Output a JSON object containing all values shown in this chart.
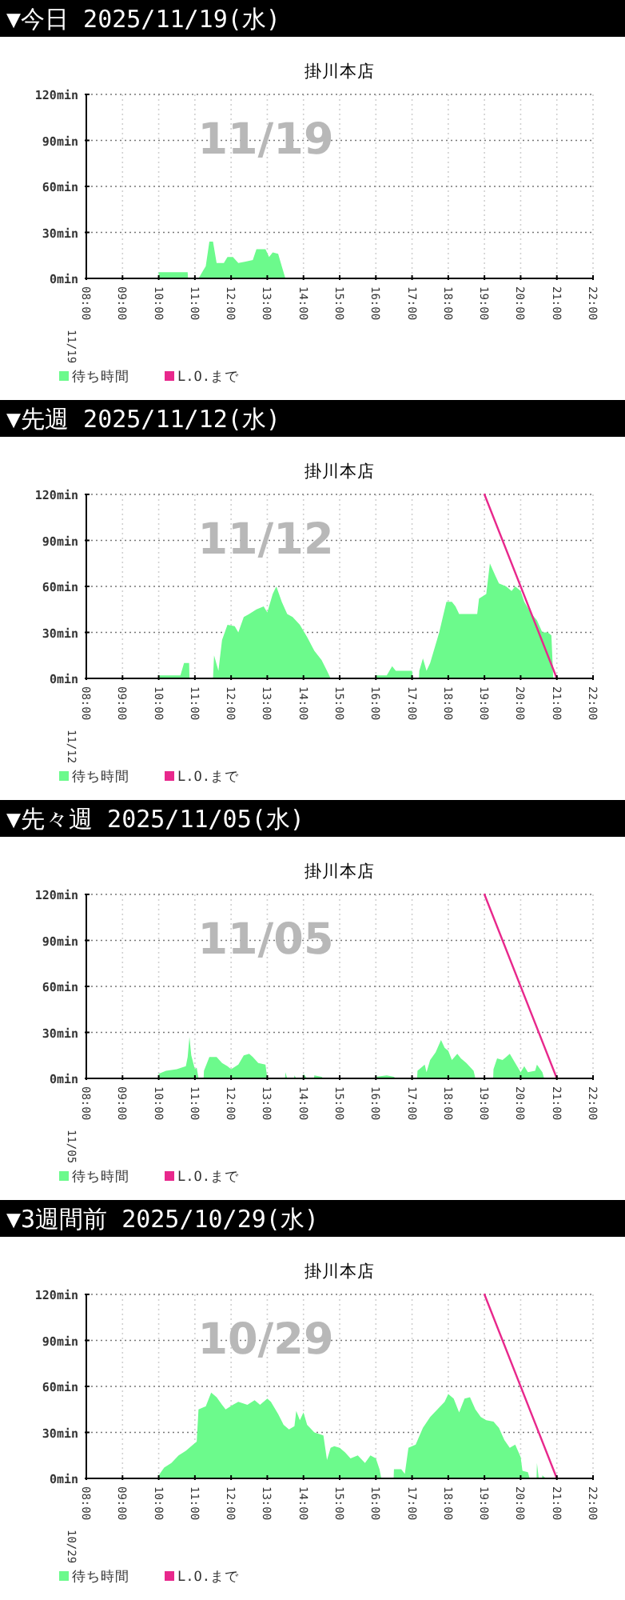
{
  "chart_data": [
    {
      "type": "area",
      "title": "▼今日 2025/11/19(水)",
      "subtitle": "掛川本店",
      "annotations": [
        "11/19",
        "11/19"
      ],
      "xlim": [
        8,
        22
      ],
      "ylim": [
        0,
        120
      ],
      "grid": true,
      "legend": "bottom left",
      "xticks": [
        {
          "value": 8,
          "label": "08:00"
        },
        {
          "value": 9,
          "label": "09:00"
        },
        {
          "value": 10,
          "label": "10:00"
        },
        {
          "value": 11,
          "label": "11:00"
        },
        {
          "value": 12,
          "label": "12:00"
        },
        {
          "value": 13,
          "label": "13:00"
        },
        {
          "value": 14,
          "label": "14:00"
        },
        {
          "value": 15,
          "label": "15:00"
        },
        {
          "value": 16,
          "label": "16:00"
        },
        {
          "value": 17,
          "label": "17:00"
        },
        {
          "value": 18,
          "label": "18:00"
        },
        {
          "value": 19,
          "label": "19:00"
        },
        {
          "value": 20,
          "label": "20:00"
        },
        {
          "value": 21,
          "label": "21:00"
        },
        {
          "value": 22,
          "label": "22:00"
        }
      ],
      "yticks": [
        {
          "value": 0,
          "label": "0min"
        },
        {
          "value": 30,
          "label": "30min"
        },
        {
          "value": 60,
          "label": "60min"
        },
        {
          "value": 90,
          "label": "90min"
        },
        {
          "value": 120,
          "label": "120min"
        }
      ],
      "series": [
        {
          "name": "待ち時間",
          "color": "#6cfa8c",
          "x": [
            10,
            10.8,
            10.81,
            11.1,
            11.15,
            11.3,
            11.4,
            11.5,
            11.6,
            11.8,
            11.9,
            12.05,
            12.2,
            12.4,
            12.6,
            12.7,
            12.95,
            13.05,
            13.15,
            13.3,
            13.4,
            13.5
          ],
          "values": [
            4,
            4,
            0,
            0,
            2,
            8,
            24,
            24,
            10,
            10,
            14,
            14,
            10,
            11,
            12,
            19,
            19,
            14,
            17,
            16,
            8,
            0
          ]
        },
        {
          "name": "L.O.まで",
          "type": "line",
          "color": "#e8288c"
        }
      ]
    },
    {
      "type": "area",
      "title": "▼先週 2025/11/12(水)",
      "subtitle": "掛川本店",
      "annotations": [
        "11/12",
        "11/12"
      ],
      "xlim": [
        8,
        22
      ],
      "ylim": [
        0,
        120
      ],
      "grid": true,
      "legend": "bottom left",
      "xticks": [
        {
          "value": 8,
          "label": "08:00"
        },
        {
          "value": 9,
          "label": "09:00"
        },
        {
          "value": 10,
          "label": "10:00"
        },
        {
          "value": 11,
          "label": "11:00"
        },
        {
          "value": 12,
          "label": "12:00"
        },
        {
          "value": 13,
          "label": "13:00"
        },
        {
          "value": 14,
          "label": "14:00"
        },
        {
          "value": 15,
          "label": "15:00"
        },
        {
          "value": 16,
          "label": "16:00"
        },
        {
          "value": 17,
          "label": "17:00"
        },
        {
          "value": 18,
          "label": "18:00"
        },
        {
          "value": 19,
          "label": "19:00"
        },
        {
          "value": 20,
          "label": "20:00"
        },
        {
          "value": 21,
          "label": "21:00"
        },
        {
          "value": 22,
          "label": "22:00"
        }
      ],
      "yticks": [
        {
          "value": 0,
          "label": "0min"
        },
        {
          "value": 30,
          "label": "30min"
        },
        {
          "value": 60,
          "label": "60min"
        },
        {
          "value": 90,
          "label": "90min"
        },
        {
          "value": 120,
          "label": "120min"
        }
      ],
      "series": [
        {
          "name": "待ち時間",
          "color": "#6cfa8c",
          "x": [
            10,
            10.6,
            10.7,
            10.84,
            10.85,
            11.5,
            11.53,
            11.65,
            11.75,
            11.9,
            12.1,
            12.2,
            12.35,
            12.5,
            12.7,
            12.9,
            13.0,
            13.15,
            13.25,
            13.4,
            13.55,
            13.7,
            13.9,
            14.1,
            14.3,
            14.5,
            14.65,
            14.75,
            15.99,
            16,
            16.3,
            16.45,
            16.55,
            17,
            17.02,
            17.19,
            17.2,
            17.3,
            17.4,
            17.5,
            17.75,
            17.95,
            18.1,
            18.2,
            18.3,
            18.8,
            18.85,
            19.05,
            19.15,
            19.3,
            19.4,
            19.6,
            19.75,
            19.85,
            20,
            20.1,
            20.3,
            20.45,
            20.6,
            20.75,
            20.85,
            20.9
          ],
          "values": [
            2,
            2,
            10,
            10,
            0,
            0,
            15,
            5,
            25,
            35,
            34,
            30,
            40,
            42,
            45,
            47,
            43,
            55,
            60,
            50,
            42,
            40,
            35,
            27,
            18,
            12,
            5,
            0,
            0,
            2,
            2,
            8,
            5,
            5,
            0,
            0,
            5,
            13,
            5,
            10,
            30,
            50,
            50,
            47,
            42,
            42,
            52,
            55,
            75,
            67,
            62,
            60,
            57,
            60,
            57,
            50,
            42,
            38,
            30,
            30,
            28,
            0
          ]
        },
        {
          "name": "L.O.まで",
          "type": "line",
          "color": "#e8288c",
          "x": [
            19,
            21
          ],
          "values": [
            120,
            0
          ]
        }
      ]
    },
    {
      "type": "area",
      "title": "▼先々週 2025/11/05(水)",
      "subtitle": "掛川本店",
      "annotations": [
        "11/05",
        "11/05"
      ],
      "xlim": [
        8,
        22
      ],
      "ylim": [
        0,
        120
      ],
      "grid": true,
      "legend": "bottom left",
      "xticks": [
        {
          "value": 8,
          "label": "08:00"
        },
        {
          "value": 9,
          "label": "09:00"
        },
        {
          "value": 10,
          "label": "10:00"
        },
        {
          "value": 11,
          "label": "11:00"
        },
        {
          "value": 12,
          "label": "12:00"
        },
        {
          "value": 13,
          "label": "13:00"
        },
        {
          "value": 14,
          "label": "14:00"
        },
        {
          "value": 15,
          "label": "15:00"
        },
        {
          "value": 16,
          "label": "16:00"
        },
        {
          "value": 17,
          "label": "17:00"
        },
        {
          "value": 18,
          "label": "18:00"
        },
        {
          "value": 19,
          "label": "19:00"
        },
        {
          "value": 20,
          "label": "20:00"
        },
        {
          "value": 21,
          "label": "21:00"
        },
        {
          "value": 22,
          "label": "22:00"
        }
      ],
      "yticks": [
        {
          "value": 0,
          "label": "0min"
        },
        {
          "value": 30,
          "label": "30min"
        },
        {
          "value": 60,
          "label": "60min"
        },
        {
          "value": 90,
          "label": "90min"
        },
        {
          "value": 120,
          "label": "120min"
        }
      ],
      "series": [
        {
          "name": "待ち時間",
          "color": "#6cfa8c",
          "x": [
            10,
            10.2,
            10.5,
            10.75,
            10.8,
            10.85,
            10.9,
            11.0,
            11.05,
            11.1,
            11.24,
            11.25,
            11.4,
            11.6,
            11.75,
            11.9,
            12.0,
            12.2,
            12.35,
            12.5,
            12.6,
            12.75,
            12.95,
            13.0,
            13.49,
            13.5,
            13.55,
            13.74,
            13.75,
            13.8,
            13.99,
            14.0,
            14.1,
            14.29,
            14.3,
            14.5,
            14.55,
            15.99,
            16,
            16.3,
            16.5,
            16.55,
            17.14,
            17.15,
            17.35,
            17.4,
            17.5,
            17.65,
            17.8,
            17.9,
            18.0,
            18.1,
            18.25,
            18.35,
            18.5,
            18.7,
            18.75,
            19.24,
            19.25,
            19.35,
            19.5,
            19.6,
            19.7,
            19.85,
            20.0,
            20.1,
            20.2,
            20.4,
            20.45,
            20.6,
            20.65
          ],
          "values": [
            3,
            5,
            6,
            8,
            14,
            27,
            15,
            6,
            7,
            0,
            0,
            5,
            14,
            14,
            10,
            8,
            6,
            9,
            15,
            16,
            14,
            10,
            9,
            0,
            0,
            4,
            0,
            0,
            2,
            0,
            0,
            3,
            0,
            0,
            2,
            1,
            0,
            0,
            1,
            2,
            1,
            0,
            0,
            5,
            9,
            4,
            12,
            17,
            25,
            20,
            18,
            12,
            16,
            13,
            10,
            5,
            0,
            0,
            6,
            13,
            12,
            14,
            16,
            10,
            4,
            8,
            4,
            5,
            9,
            4,
            0
          ]
        },
        {
          "name": "L.O.まで",
          "type": "line",
          "color": "#e8288c",
          "x": [
            19,
            21
          ],
          "values": [
            120,
            0
          ]
        }
      ]
    },
    {
      "type": "area",
      "title": "▼3週間前 2025/10/29(水)",
      "subtitle": "掛川本店",
      "annotations": [
        "10/29",
        "10/29"
      ],
      "xlim": [
        8,
        22
      ],
      "ylim": [
        0,
        120
      ],
      "grid": true,
      "legend": "bottom left",
      "xticks": [
        {
          "value": 8,
          "label": "08:00"
        },
        {
          "value": 9,
          "label": "09:00"
        },
        {
          "value": 10,
          "label": "10:00"
        },
        {
          "value": 11,
          "label": "11:00"
        },
        {
          "value": 12,
          "label": "12:00"
        },
        {
          "value": 13,
          "label": "13:00"
        },
        {
          "value": 14,
          "label": "14:00"
        },
        {
          "value": 15,
          "label": "15:00"
        },
        {
          "value": 16,
          "label": "16:00"
        },
        {
          "value": 17,
          "label": "17:00"
        },
        {
          "value": 18,
          "label": "18:00"
        },
        {
          "value": 19,
          "label": "19:00"
        },
        {
          "value": 20,
          "label": "20:00"
        },
        {
          "value": 21,
          "label": "21:00"
        },
        {
          "value": 22,
          "label": "22:00"
        }
      ],
      "yticks": [
        {
          "value": 0,
          "label": "0min"
        },
        {
          "value": 30,
          "label": "30min"
        },
        {
          "value": 60,
          "label": "60min"
        },
        {
          "value": 90,
          "label": "90min"
        },
        {
          "value": 120,
          "label": "120min"
        }
      ],
      "series": [
        {
          "name": "待ち時間",
          "color": "#6cfa8c",
          "x": [
            10,
            10.15,
            10.35,
            10.55,
            10.75,
            10.95,
            11.05,
            11.1,
            11.3,
            11.45,
            11.6,
            11.75,
            11.85,
            12.05,
            12.2,
            12.45,
            12.65,
            12.8,
            13.0,
            13.1,
            13.3,
            13.45,
            13.6,
            13.75,
            13.8,
            13.9,
            14.0,
            14.1,
            14.3,
            14.55,
            14.65,
            14.75,
            14.85,
            15.0,
            15.15,
            15.3,
            15.5,
            15.7,
            15.85,
            16.0,
            16.1,
            16.15,
            16.49,
            16.5,
            16.7,
            16.8,
            16.9,
            17.1,
            17.3,
            17.5,
            17.7,
            17.9,
            18.0,
            18.15,
            18.3,
            18.45,
            18.6,
            18.75,
            18.9,
            19.05,
            19.25,
            19.4,
            19.55,
            19.7,
            19.85,
            20.0,
            20.05,
            20.2,
            20.25,
            20.44,
            20.45,
            20.5,
            20.59,
            20.6,
            20.7
          ],
          "values": [
            2,
            7,
            10,
            15,
            18,
            22,
            24,
            45,
            47,
            56,
            53,
            48,
            45,
            48,
            50,
            48,
            51,
            48,
            52,
            50,
            42,
            35,
            32,
            34,
            44,
            38,
            43,
            35,
            30,
            28,
            12,
            20,
            21,
            20,
            17,
            13,
            15,
            10,
            15,
            13,
            6,
            0,
            0,
            6,
            6,
            3,
            20,
            22,
            33,
            40,
            45,
            50,
            55,
            52,
            43,
            52,
            53,
            45,
            40,
            38,
            37,
            33,
            25,
            20,
            22,
            14,
            5,
            4,
            0,
            0,
            10,
            0,
            0,
            2,
            0
          ]
        },
        {
          "name": "L.O.まで",
          "type": "line",
          "color": "#e8288c",
          "x": [
            19,
            21
          ],
          "values": [
            120,
            0
          ]
        }
      ]
    }
  ]
}
